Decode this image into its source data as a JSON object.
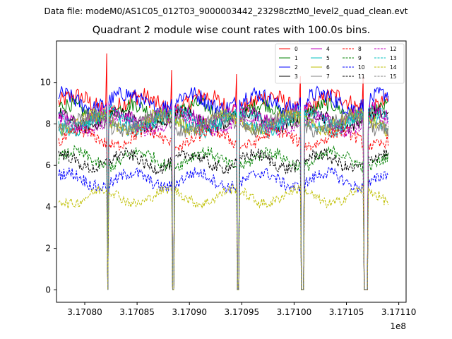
{
  "suptitle": "Data file: modeM0/AS1C05_012T03_9000003442_23298cztM0_level2_quad_clean.evt",
  "chart_data": {
    "type": "line",
    "title": "Quadrant 2 module wise count rates with 100.0s bins.",
    "xlabel": "",
    "ylabel": "",
    "x_offset_label": "1e8",
    "xlim": [
      3.170773,
      3.171107
    ],
    "ylim": [
      -0.6,
      12.0
    ],
    "x_scale": 100000000,
    "x_start": 317077500,
    "x_end": 317109000,
    "bin_seconds": 100,
    "xticks": [
      3.1708,
      3.17085,
      3.1709,
      3.17095,
      3.171,
      3.17105,
      3.1711
    ],
    "xtick_labels": [
      "3.17080",
      "3.17085",
      "3.17090",
      "3.17095",
      "3.17100",
      "3.17105",
      "3.17110"
    ],
    "yticks": [
      0,
      2,
      4,
      6,
      8,
      10
    ],
    "ytick_labels": [
      "0",
      "2",
      "4",
      "6",
      "8",
      "10"
    ],
    "gaps": [
      {
        "start": 317082150,
        "end": 317082250,
        "spike": 11.4
      },
      {
        "start": 317088350,
        "end": 317088500,
        "spike": 10.6
      },
      {
        "start": 317094550,
        "end": 317094750,
        "spike": 10.4
      },
      {
        "start": 317100700,
        "end": 317100900,
        "spike": 10.3
      },
      {
        "start": 317106650,
        "end": 317107000,
        "spike": 10.3
      }
    ],
    "series": [
      {
        "name": "0",
        "color": "#ff0000",
        "dash": "solid",
        "mean": 9.0,
        "noise": 0.45
      },
      {
        "name": "1",
        "color": "#008000",
        "dash": "solid",
        "mean": 8.6,
        "noise": 0.35
      },
      {
        "name": "2",
        "color": "#0000ff",
        "dash": "solid",
        "mean": 9.1,
        "noise": 0.4
      },
      {
        "name": "3",
        "color": "#000000",
        "dash": "solid",
        "mean": 8.2,
        "noise": 0.35
      },
      {
        "name": "4",
        "color": "#bf00bf",
        "dash": "solid",
        "mean": 8.4,
        "noise": 0.35
      },
      {
        "name": "5",
        "color": "#00bfbf",
        "dash": "solid",
        "mean": 8.0,
        "noise": 0.35
      },
      {
        "name": "6",
        "color": "#bfbf00",
        "dash": "solid",
        "mean": 8.1,
        "noise": 0.35
      },
      {
        "name": "7",
        "color": "#808080",
        "dash": "solid",
        "mean": 8.0,
        "noise": 0.35
      },
      {
        "name": "8",
        "color": "#ff0000",
        "dash": "dashed",
        "mean": 7.3,
        "noise": 0.3
      },
      {
        "name": "9",
        "color": "#008000",
        "dash": "dashed",
        "mean": 6.3,
        "noise": 0.3
      },
      {
        "name": "10",
        "color": "#0000ff",
        "dash": "dashed",
        "mean": 5.3,
        "noise": 0.3
      },
      {
        "name": "11",
        "color": "#000000",
        "dash": "dashed",
        "mean": 6.2,
        "noise": 0.3
      },
      {
        "name": "12",
        "color": "#bf00bf",
        "dash": "dashed",
        "mean": 8.0,
        "noise": 0.3
      },
      {
        "name": "13",
        "color": "#00bfbf",
        "dash": "dashed",
        "mean": 8.3,
        "noise": 0.3
      },
      {
        "name": "14",
        "color": "#bfbf00",
        "dash": "dashed",
        "mean": 4.5,
        "noise": 0.25
      },
      {
        "name": "15",
        "color": "#808080",
        "dash": "dashed",
        "mean": 8.1,
        "noise": 0.3
      }
    ]
  }
}
